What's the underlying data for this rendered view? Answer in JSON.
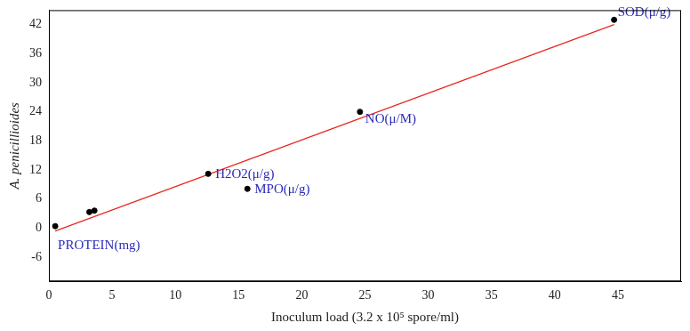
{
  "chart_data": {
    "type": "scatter",
    "x_label": "Inoculum load (3.2 x 10⁵ spore/ml)",
    "y_label": "A. penicillioides",
    "series": [
      {
        "type": "scatter",
        "color": "#000000",
        "marker": "circle",
        "x": [
          0.5,
          3.2,
          3.6,
          12.6,
          15.7,
          24.6,
          44.7
        ],
        "values": [
          0.4,
          3.3,
          3.6,
          11.2,
          8.1,
          24.0,
          43.0
        ],
        "point_labels": [
          "PROTEIN(mg)",
          null,
          null,
          "H2O2(μ/g)",
          "MPO(μ/g)",
          "NO(μ/M)",
          "SOD(μ/g)"
        ]
      },
      {
        "type": "line",
        "color": "#e8281e",
        "line_style": "solid",
        "x": [
          0.5,
          44.7
        ],
        "values": [
          -0.6,
          42.0
        ]
      }
    ],
    "xlim": [
      0,
      50
    ],
    "xticks": [
      0,
      5,
      10,
      15,
      20,
      25,
      30,
      35,
      40,
      45
    ],
    "ylim": [
      -11,
      45
    ],
    "yticks": [
      -6,
      0,
      6,
      12,
      18,
      24,
      30,
      36,
      42
    ],
    "grid": false
  }
}
